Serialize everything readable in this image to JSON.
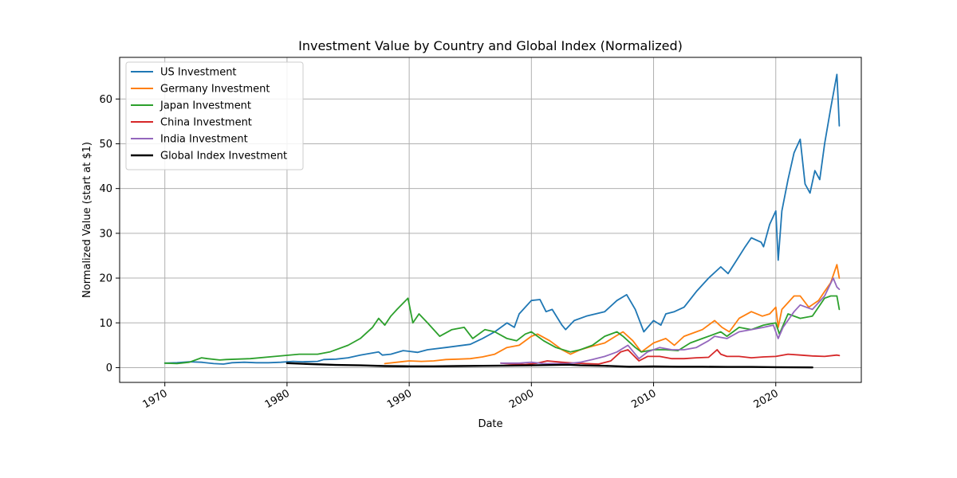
{
  "chart_data": {
    "type": "line",
    "title": "Investment Value by Country and Global Index (Normalized)",
    "xlabel": "Date",
    "ylabel": "Normalized Value (start at $1)",
    "xlim": [
      1966.3,
      2027.0
    ],
    "ylim": [
      -3.3,
      69.3
    ],
    "x_ticks": [
      1970,
      1980,
      1990,
      2000,
      2010,
      2020
    ],
    "x_tick_labels": [
      "1970",
      "1980",
      "1990",
      "2000",
      "2010",
      "2020"
    ],
    "y_ticks": [
      0,
      10,
      20,
      30,
      40,
      50,
      60
    ],
    "y_tick_labels": [
      "0",
      "10",
      "20",
      "30",
      "40",
      "50",
      "60"
    ],
    "grid": true,
    "legend_position": "upper-left",
    "series": [
      {
        "name": "US Investment",
        "color": "#1f77b4",
        "x": [
          1970.0,
          1971.0,
          1972.0,
          1973.0,
          1974.0,
          1974.8,
          1975.5,
          1976.5,
          1977.5,
          1978.5,
          1979.5,
          1980.5,
          1981.3,
          1982.5,
          1983.0,
          1984.0,
          1985.0,
          1986.0,
          1987.5,
          1987.8,
          1988.5,
          1989.5,
          1990.7,
          1991.5,
          1993.0,
          1995.0,
          1996.0,
          1997.0,
          1998.0,
          1998.6,
          1999.0,
          2000.0,
          2000.7,
          2001.2,
          2001.7,
          2002.5,
          2002.8,
          2003.5,
          2004.5,
          2006.0,
          2007.0,
          2007.8,
          2008.5,
          2009.2,
          2010.0,
          2010.6,
          2011.0,
          2011.7,
          2012.5,
          2013.5,
          2014.5,
          2015.5,
          2016.1,
          2016.8,
          2017.5,
          2018.0,
          2018.8,
          2019.0,
          2019.5,
          2020.0,
          2020.2,
          2020.5,
          2021.0,
          2021.5,
          2022.0,
          2022.4,
          2022.8,
          2023.2,
          2023.6,
          2024.0,
          2024.5,
          2025.0,
          2025.1,
          2025.2
        ],
        "values": [
          1.0,
          1.1,
          1.3,
          1.2,
          0.9,
          0.8,
          1.1,
          1.2,
          1.1,
          1.1,
          1.2,
          1.4,
          1.3,
          1.4,
          1.8,
          1.9,
          2.2,
          2.8,
          3.5,
          2.8,
          3.0,
          3.8,
          3.4,
          4.0,
          4.5,
          5.2,
          6.5,
          8.0,
          10.0,
          9.0,
          12.0,
          15.0,
          15.2,
          12.5,
          13.0,
          9.5,
          8.5,
          10.5,
          11.5,
          12.5,
          15.0,
          16.3,
          13.0,
          8.0,
          10.5,
          9.5,
          12.0,
          12.5,
          13.5,
          17.0,
          20.0,
          22.5,
          21.0,
          24.0,
          27.0,
          29.0,
          28.0,
          27.0,
          32.0,
          35.0,
          24.0,
          35.0,
          42.0,
          48.0,
          51.0,
          41.0,
          39.0,
          44.0,
          42.0,
          50.0,
          58.0,
          65.5,
          60.0,
          54.0
        ]
      },
      {
        "name": "Germany Investment",
        "color": "#ff7f0e",
        "x": [
          1988.0,
          1989.0,
          1990.0,
          1991.0,
          1992.0,
          1993.0,
          1994.0,
          1995.0,
          1996.0,
          1997.0,
          1998.0,
          1999.0,
          2000.0,
          2000.5,
          2001.5,
          2002.5,
          2003.2,
          2004.0,
          2005.0,
          2006.0,
          2007.0,
          2007.5,
          2008.3,
          2009.0,
          2010.0,
          2011.0,
          2011.7,
          2012.5,
          2013.5,
          2014.0,
          2015.0,
          2015.6,
          2016.2,
          2017.0,
          2018.0,
          2018.9,
          2019.5,
          2020.0,
          2020.2,
          2020.5,
          2021.5,
          2022.0,
          2022.7,
          2023.5,
          2024.0,
          2024.5,
          2025.0,
          2025.2
        ],
        "values": [
          0.9,
          1.2,
          1.5,
          1.4,
          1.5,
          1.8,
          1.9,
          2.0,
          2.4,
          3.0,
          4.5,
          5.0,
          7.0,
          7.5,
          6.0,
          4.0,
          3.0,
          4.0,
          4.8,
          5.5,
          7.2,
          8.0,
          6.0,
          3.5,
          5.5,
          6.5,
          5.0,
          7.0,
          8.0,
          8.5,
          10.5,
          9.0,
          8.0,
          11.0,
          12.5,
          11.5,
          12.0,
          13.5,
          9.0,
          13.0,
          16.0,
          16.0,
          13.5,
          15.0,
          17.0,
          19.0,
          23.0,
          20.0
        ]
      },
      {
        "name": "Japan Investment",
        "color": "#2ca02c",
        "x": [
          1970.0,
          1971.0,
          1972.0,
          1973.0,
          1973.5,
          1974.5,
          1975.0,
          1977.0,
          1979.0,
          1981.0,
          1982.5,
          1983.5,
          1985.0,
          1986.0,
          1987.0,
          1987.5,
          1988.0,
          1988.5,
          1989.0,
          1989.9,
          1990.3,
          1990.8,
          1991.5,
          1992.5,
          1993.5,
          1994.5,
          1995.2,
          1996.2,
          1997.0,
          1998.0,
          1998.8,
          1999.5,
          2000.0,
          2001.0,
          2002.0,
          2003.2,
          2004.0,
          2005.0,
          2006.0,
          2007.0,
          2007.5,
          2008.5,
          2009.0,
          2010.0,
          2011.0,
          2012.0,
          2013.0,
          2014.0,
          2015.5,
          2016.0,
          2017.0,
          2018.0,
          2019.0,
          2020.0,
          2020.3,
          2021.0,
          2022.0,
          2023.0,
          2024.0,
          2024.5,
          2025.0,
          2025.2
        ],
        "values": [
          1.0,
          0.9,
          1.2,
          2.2,
          2.0,
          1.7,
          1.8,
          2.0,
          2.5,
          3.0,
          3.0,
          3.5,
          5.0,
          6.5,
          9.0,
          11.0,
          9.5,
          11.5,
          13.0,
          15.5,
          10.0,
          12.0,
          10.0,
          7.0,
          8.5,
          9.0,
          6.5,
          8.5,
          8.0,
          6.5,
          6.0,
          7.5,
          8.0,
          6.0,
          4.5,
          3.5,
          4.0,
          5.0,
          7.0,
          8.0,
          7.0,
          4.5,
          3.5,
          4.0,
          4.0,
          3.8,
          5.5,
          6.5,
          8.0,
          7.0,
          9.0,
          8.5,
          9.5,
          10.0,
          7.5,
          12.0,
          11.0,
          11.5,
          15.5,
          16.0,
          16.0,
          13.0
        ]
      },
      {
        "name": "China Investment",
        "color": "#d62728",
        "x": [
          1997.5,
          1998.5,
          1999.5,
          2000.5,
          2001.3,
          2002.5,
          2003.5,
          2004.5,
          2005.5,
          2006.5,
          2007.3,
          2007.9,
          2008.8,
          2009.5,
          2010.5,
          2011.5,
          2012.5,
          2013.5,
          2014.5,
          2015.2,
          2015.5,
          2016.0,
          2017.0,
          2018.0,
          2019.0,
          2020.0,
          2021.0,
          2022.0,
          2023.0,
          2024.0,
          2025.0,
          2025.2
        ],
        "values": [
          1.0,
          0.8,
          0.7,
          1.0,
          1.5,
          1.2,
          1.0,
          0.9,
          0.8,
          1.5,
          3.5,
          4.0,
          1.5,
          2.5,
          2.5,
          2.0,
          2.0,
          2.2,
          2.3,
          4.0,
          3.0,
          2.5,
          2.5,
          2.2,
          2.4,
          2.5,
          3.0,
          2.8,
          2.6,
          2.5,
          2.8,
          2.7
        ]
      },
      {
        "name": "India Investment",
        "color": "#9467bd",
        "x": [
          1997.5,
          1999.0,
          2000.0,
          2001.0,
          2002.0,
          2003.0,
          2004.0,
          2005.0,
          2006.0,
          2007.0,
          2007.9,
          2008.8,
          2009.5,
          2010.5,
          2011.5,
          2012.5,
          2013.5,
          2014.5,
          2015.0,
          2016.0,
          2017.0,
          2018.0,
          2019.0,
          2019.8,
          2020.2,
          2020.6,
          2021.5,
          2022.0,
          2023.0,
          2024.0,
          2024.7,
          2025.0,
          2025.2
        ],
        "values": [
          1.0,
          1.0,
          1.2,
          0.9,
          0.9,
          0.9,
          1.2,
          1.8,
          2.5,
          3.5,
          5.0,
          2.0,
          3.5,
          4.5,
          4.0,
          4.0,
          4.5,
          6.0,
          7.0,
          6.5,
          8.0,
          8.5,
          9.0,
          9.5,
          6.5,
          9.0,
          12.5,
          14.0,
          13.0,
          16.0,
          20.0,
          18.0,
          17.5
        ]
      },
      {
        "name": "Global Index Investment",
        "color": "#000000",
        "x": [
          1980.0,
          1982.0,
          1984.0,
          1986.0,
          1988.0,
          1990.0,
          1992.0,
          1994.0,
          1996.0,
          1998.0,
          2000.0,
          2002.0,
          2003.0,
          2004.0,
          2006.0,
          2008.0,
          2010.0,
          2012.0,
          2014.0,
          2016.0,
          2018.0,
          2020.0,
          2023.0
        ],
        "values": [
          1.0,
          0.8,
          0.6,
          0.5,
          0.35,
          0.3,
          0.3,
          0.35,
          0.4,
          0.45,
          0.5,
          0.6,
          0.65,
          0.5,
          0.4,
          0.2,
          0.25,
          0.2,
          0.2,
          0.15,
          0.15,
          0.1,
          0.05
        ]
      }
    ]
  }
}
